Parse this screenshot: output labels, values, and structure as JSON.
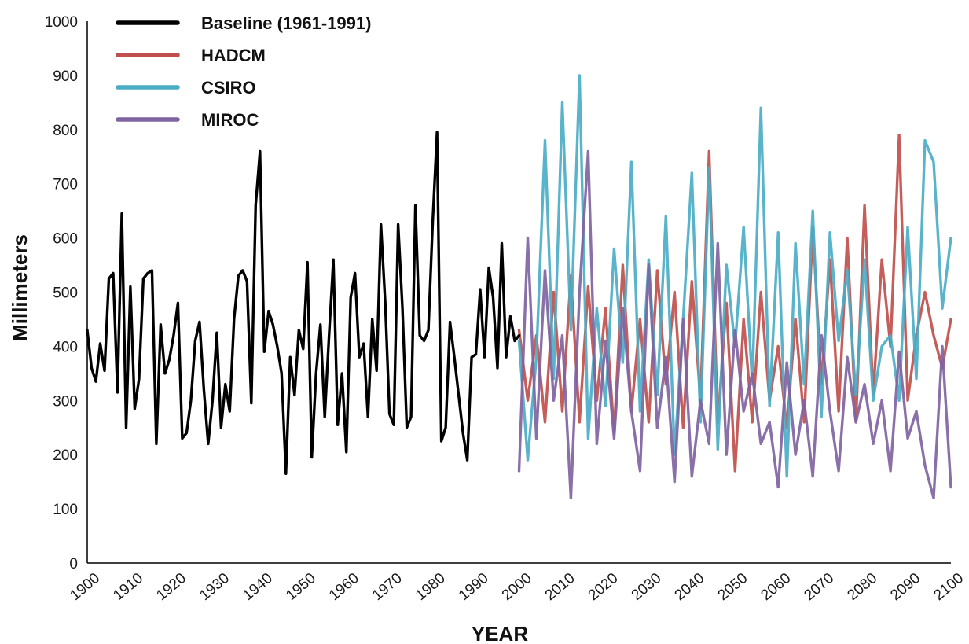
{
  "chart_data": {
    "type": "line",
    "xlabel": "YEAR",
    "ylabel": "Millimeters",
    "xlim": [
      1900,
      2100
    ],
    "ylim": [
      0,
      1000
    ],
    "x_ticks": [
      "1900",
      "1910",
      "1920",
      "1930",
      "1940",
      "1950",
      "1960",
      "1970",
      "1980",
      "1990",
      "2000",
      "2010",
      "2020",
      "2030",
      "2040",
      "2050",
      "2060",
      "2070",
      "2080",
      "2090",
      "2100"
    ],
    "y_ticks": [
      "0",
      "100",
      "200",
      "300",
      "400",
      "500",
      "600",
      "700",
      "800",
      "900",
      "1000"
    ],
    "legend_position": "top-left",
    "series": [
      {
        "name": "Baseline (1961-1991)",
        "color": "#000000",
        "x": [
          1900,
          1901,
          1902,
          1903,
          1904,
          1905,
          1906,
          1907,
          1908,
          1909,
          1910,
          1911,
          1912,
          1913,
          1914,
          1915,
          1916,
          1917,
          1918,
          1919,
          1920,
          1921,
          1922,
          1923,
          1924,
          1925,
          1926,
          1927,
          1928,
          1929,
          1930,
          1931,
          1932,
          1933,
          1934,
          1935,
          1936,
          1937,
          1938,
          1939,
          1940,
          1941,
          1942,
          1943,
          1944,
          1945,
          1946,
          1947,
          1948,
          1949,
          1950,
          1951,
          1952,
          1953,
          1954,
          1955,
          1956,
          1957,
          1958,
          1959,
          1960,
          1961,
          1962,
          1963,
          1964,
          1965,
          1966,
          1967,
          1968,
          1969,
          1970,
          1971,
          1972,
          1973,
          1974,
          1975,
          1976,
          1977,
          1978,
          1979,
          1980,
          1981,
          1982,
          1983,
          1984,
          1985,
          1986,
          1987,
          1988,
          1989,
          1990,
          1991,
          1992,
          1993,
          1994,
          1995,
          1996,
          1997,
          1998,
          1999,
          2000
        ],
        "values": [
          430,
          360,
          335,
          405,
          355,
          525,
          535,
          315,
          645,
          250,
          510,
          285,
          340,
          525,
          535,
          540,
          220,
          440,
          350,
          375,
          420,
          480,
          230,
          240,
          300,
          410,
          445,
          320,
          220,
          300,
          425,
          250,
          330,
          280,
          450,
          530,
          540,
          520,
          295,
          660,
          760,
          390,
          465,
          440,
          400,
          350,
          165,
          380,
          310,
          430,
          395,
          555,
          195,
          350,
          440,
          270,
          420,
          560,
          255,
          350,
          205,
          490,
          535,
          380,
          405,
          270,
          450,
          355,
          625,
          480,
          275,
          255,
          625,
          470,
          250,
          270,
          660,
          420,
          410,
          430,
          630,
          795,
          225,
          250,
          445,
          380,
          310,
          240,
          190,
          380,
          385,
          505,
          380,
          545,
          490,
          360,
          590,
          380,
          455,
          410,
          420
        ]
      },
      {
        "name": "HADCM",
        "color": "#c0504d",
        "x": [
          2000,
          2002,
          2004,
          2006,
          2008,
          2010,
          2012,
          2014,
          2016,
          2018,
          2020,
          2022,
          2024,
          2026,
          2028,
          2030,
          2032,
          2034,
          2036,
          2038,
          2040,
          2042,
          2044,
          2046,
          2048,
          2050,
          2052,
          2054,
          2056,
          2058,
          2060,
          2062,
          2064,
          2066,
          2068,
          2070,
          2072,
          2074,
          2076,
          2078,
          2080,
          2082,
          2084,
          2086,
          2088,
          2090,
          2092,
          2094,
          2096,
          2098,
          2100
        ],
        "values": [
          430,
          300,
          420,
          260,
          500,
          280,
          530,
          260,
          510,
          300,
          470,
          240,
          550,
          280,
          450,
          260,
          540,
          330,
          500,
          250,
          520,
          300,
          760,
          260,
          480,
          170,
          450,
          260,
          500,
          300,
          400,
          250,
          450,
          260,
          620,
          330,
          560,
          280,
          600,
          260,
          660,
          310,
          560,
          400,
          790,
          300,
          420,
          500,
          420,
          360,
          450
        ]
      },
      {
        "name": "CSIRO",
        "color": "#4bacc6",
        "x": [
          2000,
          2002,
          2004,
          2006,
          2008,
          2010,
          2012,
          2014,
          2016,
          2018,
          2020,
          2022,
          2024,
          2026,
          2028,
          2030,
          2032,
          2034,
          2036,
          2038,
          2040,
          2042,
          2044,
          2046,
          2048,
          2050,
          2052,
          2054,
          2056,
          2058,
          2060,
          2062,
          2064,
          2066,
          2068,
          2070,
          2072,
          2074,
          2076,
          2078,
          2080,
          2082,
          2084,
          2086,
          2088,
          2090,
          2092,
          2094,
          2096,
          2098,
          2100
        ],
        "values": [
          410,
          190,
          380,
          780,
          340,
          850,
          430,
          900,
          230,
          470,
          290,
          580,
          370,
          740,
          280,
          560,
          310,
          640,
          200,
          450,
          720,
          260,
          730,
          210,
          550,
          400,
          620,
          330,
          840,
          290,
          610,
          160,
          590,
          330,
          650,
          270,
          610,
          410,
          540,
          310,
          560,
          300,
          400,
          420,
          300,
          620,
          340,
          780,
          740,
          470,
          600
        ]
      },
      {
        "name": "MIROC",
        "color": "#8064a2",
        "x": [
          2000,
          2002,
          2004,
          2006,
          2008,
          2010,
          2012,
          2014,
          2016,
          2018,
          2020,
          2022,
          2024,
          2026,
          2028,
          2030,
          2032,
          2034,
          2036,
          2038,
          2040,
          2042,
          2044,
          2046,
          2048,
          2050,
          2052,
          2054,
          2056,
          2058,
          2060,
          2062,
          2064,
          2066,
          2068,
          2070,
          2072,
          2074,
          2076,
          2078,
          2080,
          2082,
          2084,
          2086,
          2088,
          2090,
          2092,
          2094,
          2096,
          2098,
          2100
        ],
        "values": [
          170,
          600,
          230,
          540,
          300,
          420,
          120,
          500,
          760,
          220,
          410,
          230,
          470,
          280,
          170,
          550,
          250,
          380,
          150,
          450,
          160,
          300,
          220,
          590,
          200,
          430,
          280,
          350,
          220,
          260,
          140,
          370,
          200,
          300,
          160,
          420,
          280,
          170,
          380,
          260,
          330,
          220,
          300,
          170,
          390,
          230,
          280,
          180,
          120,
          400,
          140
        ]
      }
    ]
  }
}
